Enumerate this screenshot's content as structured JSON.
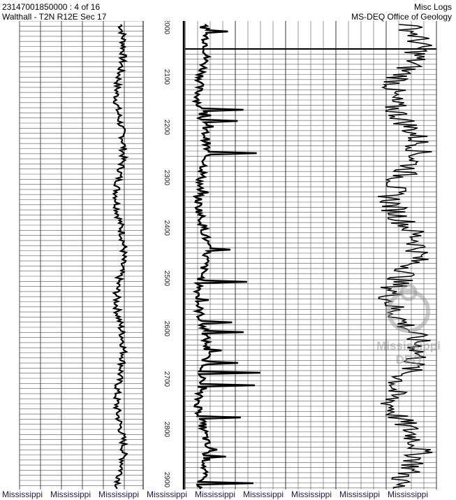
{
  "header": {
    "well_id_page": "23147001850000 : 4 of 16",
    "location": "Walthall - T2N R12E Sec 17",
    "log_type": "Misc Logs",
    "agency": "MS-DEQ Office of Geology"
  },
  "depth_labels": [
    "2000",
    "2100",
    "2200",
    "2300",
    "2400",
    "2500",
    "2600",
    "2700",
    "2800",
    "2900"
  ],
  "watermark": {
    "line1": "Mississippi",
    "line2": "DEQ"
  },
  "footer": [
    "Mississippi",
    "Mississippi",
    "Mississippi",
    "Mississippi",
    "Mississippi",
    "Mississippi",
    "Mississippi",
    "Mississippi",
    "Mississippi"
  ]
}
